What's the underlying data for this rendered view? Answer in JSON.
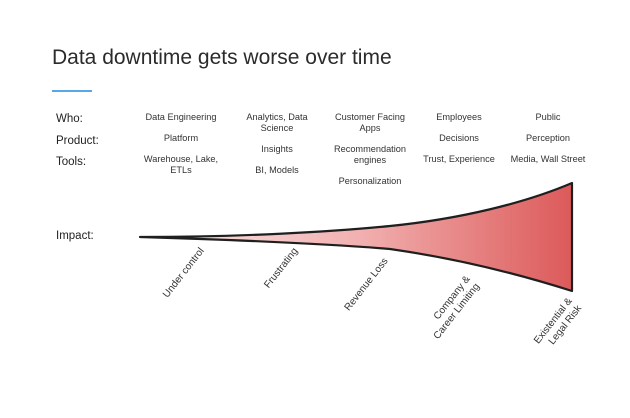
{
  "title": "Data downtime gets worse over time",
  "accent_color": "#5aa7e6",
  "row_labels": {
    "who": "Who:",
    "product": "Product:",
    "tools": "Tools:",
    "impact": "Impact:"
  },
  "columns": [
    {
      "who": "Data Engineering",
      "product": "Platform",
      "tools": "Warehouse, Lake, ETLs",
      "stage": "Under control"
    },
    {
      "who": "Analytics, Data Science",
      "product": "Insights",
      "tools": "BI, Models",
      "stage": "Frustrating"
    },
    {
      "who": "Customer Facing Apps",
      "product": "Recommendation engines",
      "tools": "Personalization",
      "stage": "Revenue Loss"
    },
    {
      "who": "Employees",
      "product": "Decisions",
      "tools": "Trust, Experience",
      "stage": "Company & Career Limiting"
    },
    {
      "who": "Public",
      "product": "Perception",
      "tools": "Media, Wall Street",
      "stage": "Existential & Legal Risk"
    }
  ],
  "gradient": {
    "start": "#fbe9e9",
    "end": "#dc5a5a",
    "stroke": "#1f1f1f"
  }
}
